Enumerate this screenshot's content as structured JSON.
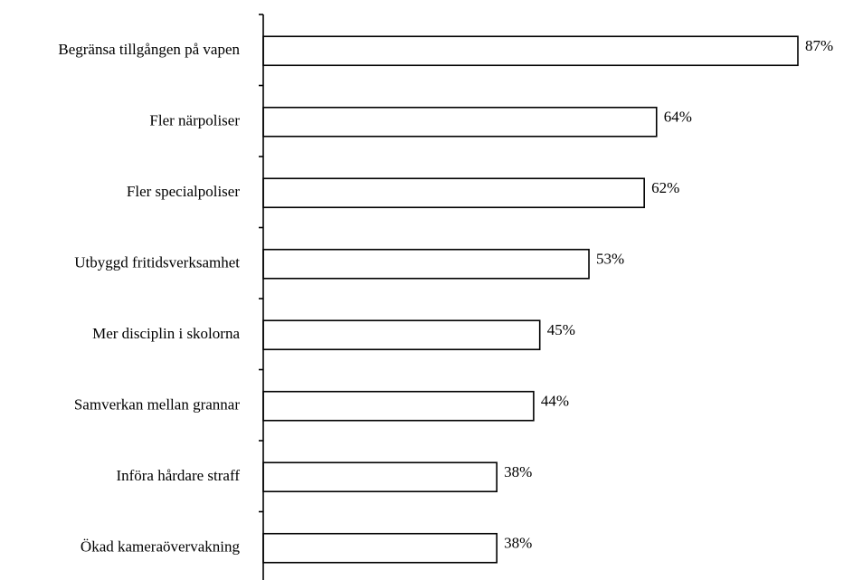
{
  "chart_data": {
    "type": "bar",
    "orientation": "horizontal",
    "categories": [
      "Begränsa tillgången på vapen",
      "Fler närpoliser",
      "Fler specialpoliser",
      "Utbyggd fritidsverksamhet",
      "Mer disciplin i skolorna",
      "Samverkan mellan grannar",
      "Införa hårdare straff",
      "Ökad kameraövervakning"
    ],
    "values": [
      87,
      64,
      62,
      53,
      45,
      44,
      38,
      38
    ],
    "value_labels": [
      "87%",
      "64%",
      "62%",
      "53%",
      "45%",
      "44%",
      "38%",
      "38%"
    ],
    "xlim": [
      0,
      87
    ],
    "grid": false,
    "legend": "none",
    "colors": {
      "bar_fill": "#ffffff",
      "bar_stroke": "#000000",
      "text": "#000000"
    }
  }
}
